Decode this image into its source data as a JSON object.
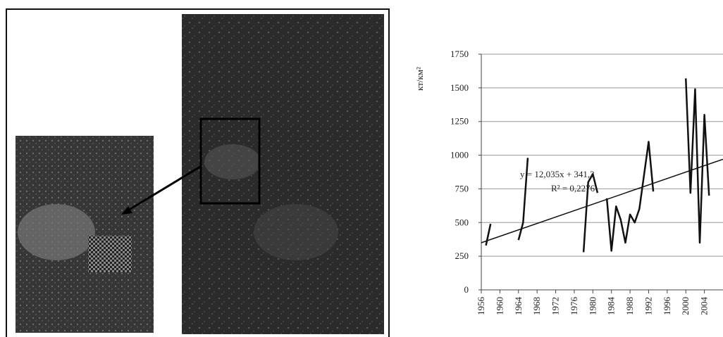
{
  "chart_data": {
    "type": "line",
    "y_label": "кт/км²",
    "x": [
      1957,
      1958,
      1959,
      1964,
      1965,
      1966,
      1967,
      1978,
      1979,
      1980,
      1981,
      1982,
      1983,
      1984,
      1985,
      1986,
      1987,
      1988,
      1989,
      1990,
      1992,
      1993,
      1994,
      2000,
      2001,
      2002,
      2003,
      2004,
      2005
    ],
    "series": [
      {
        "color": "#111111",
        "values": [
          330,
          490,
          null,
          370,
          500,
          980,
          null,
          280,
          800,
          860,
          720,
          null,
          680,
          290,
          620,
          520,
          350,
          560,
          500,
          600,
          1100,
          730,
          null,
          1570,
          720,
          1490,
          350,
          1300,
          700
        ]
      }
    ],
    "trendline": {
      "x": [
        1956,
        2008
      ],
      "values": [
        350,
        970
      ],
      "color": "#111111"
    },
    "annotations": [
      "y = 12,035x + 341,3",
      "R² = 0,2276"
    ],
    "xlim": [
      1956,
      2008
    ],
    "xticks": [
      1956,
      1960,
      1964,
      1968,
      1972,
      1976,
      1980,
      1984,
      1988,
      1992,
      1996,
      2000,
      2004
    ],
    "ylim": [
      0,
      1750
    ],
    "yticks": [
      0,
      250,
      500,
      750,
      1000,
      1250,
      1500,
      1750
    ],
    "grid": true
  }
}
